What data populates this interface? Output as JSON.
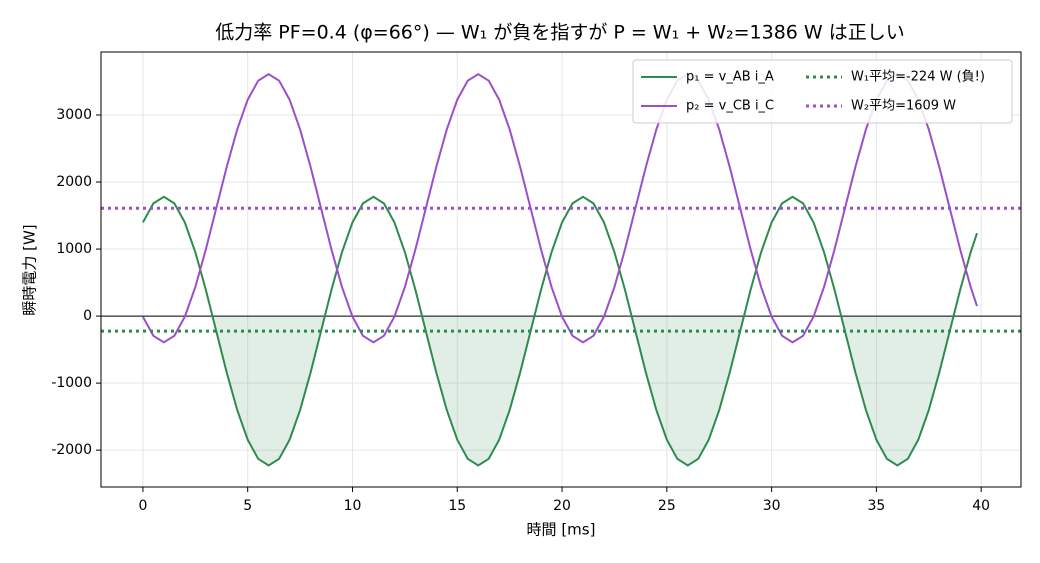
{
  "chart_data": {
    "type": "line",
    "title": "低力率 PF=0.4 (φ=66°) — W₁ が負を指すが P = W₁ + W₂=1386 W は正しい",
    "xlabel": "時間 [ms]",
    "ylabel": "瞬時電力 [W]",
    "x": [
      0,
      0.5,
      1,
      1.5,
      2,
      2.5,
      3,
      3.5,
      4,
      4.5,
      5,
      5.5,
      6,
      6.5,
      7,
      7.5,
      8,
      8.5,
      9,
      9.5,
      10,
      10.5,
      11,
      11.5,
      12,
      12.5,
      13,
      13.5,
      14,
      14.5,
      15,
      15.5,
      16,
      16.5,
      17,
      17.5,
      18,
      18.5,
      19,
      19.5,
      20,
      20.5,
      21,
      21.5,
      22,
      22.5,
      23,
      23.5,
      24,
      24.5,
      25,
      25.5,
      26,
      26.5,
      27,
      27.5,
      28,
      28.5,
      29,
      29.5,
      30,
      30.5,
      31,
      31.5,
      32,
      32.5,
      33,
      33.5,
      34,
      34.5,
      35,
      35.5,
      36,
      36.5,
      37,
      37.5,
      38,
      38.5,
      39,
      39.5,
      39.8
    ],
    "series": [
      {
        "name": "p₁ = v_AB i_A",
        "color": "#2e8b4e",
        "fill_negative": true,
        "values": [
          1397,
          1682,
          1780,
          1682,
          1397,
          954,
          395,
          -224,
          -843,
          -1402,
          -1845,
          -2130,
          -2228,
          -2130,
          -1845,
          -1402,
          -843,
          -224,
          395,
          954,
          1397,
          1682,
          1780,
          1682,
          1397,
          954,
          395,
          -224,
          -843,
          -1402,
          -1845,
          -2130,
          -2228,
          -2130,
          -1845,
          -1402,
          -843,
          -224,
          395,
          954,
          1397,
          1682,
          1780,
          1682,
          1397,
          954,
          395,
          -224,
          -843,
          -1402,
          -1845,
          -2130,
          -2228,
          -2130,
          -1845,
          -1402,
          -843,
          -224,
          395,
          954,
          1397,
          1682,
          1780,
          1682,
          1397,
          954,
          395,
          -224,
          -843,
          -1402,
          -1845,
          -2130,
          -2228,
          -2130,
          -1845,
          -1402,
          -843,
          -224,
          395,
          954,
          1237
        ]
      },
      {
        "name": "p₂ = v_CB i_C",
        "color": "#9b4fc9",
        "values": [
          -10,
          -294,
          -392,
          -294,
          -10,
          433,
          991,
          1609,
          2227,
          2785,
          3228,
          3512,
          3610,
          3512,
          3228,
          2785,
          2227,
          1609,
          991,
          433,
          -10,
          -294,
          -392,
          -294,
          -10,
          433,
          991,
          1609,
          2227,
          2785,
          3228,
          3512,
          3610,
          3512,
          3228,
          2785,
          2227,
          1609,
          991,
          433,
          -10,
          -294,
          -392,
          -294,
          -10,
          433,
          991,
          1609,
          2227,
          2785,
          3228,
          3512,
          3610,
          3512,
          3228,
          2785,
          2227,
          1609,
          991,
          433,
          -10,
          -294,
          -392,
          -294,
          -10,
          433,
          991,
          1609,
          2227,
          2785,
          3228,
          3512,
          3610,
          3512,
          3228,
          2785,
          2227,
          1609,
          991,
          433,
          150
        ]
      }
    ],
    "hlines": [
      {
        "name": "W₁平均=-224 W (負!)",
        "value": -224,
        "color": "#2e8b4e"
      },
      {
        "name": "W₂平均=1609 W",
        "value": 1609,
        "color": "#9b4fc9"
      }
    ],
    "xlim": [
      -2,
      41.9
    ],
    "xticks": [
      0,
      5,
      10,
      15,
      20,
      25,
      30,
      35,
      40
    ],
    "ylim": [
      -2550,
      3940
    ],
    "yticks": [
      -2000,
      -1000,
      0,
      1000,
      2000,
      3000
    ],
    "grid": true,
    "legend": "upper right"
  }
}
